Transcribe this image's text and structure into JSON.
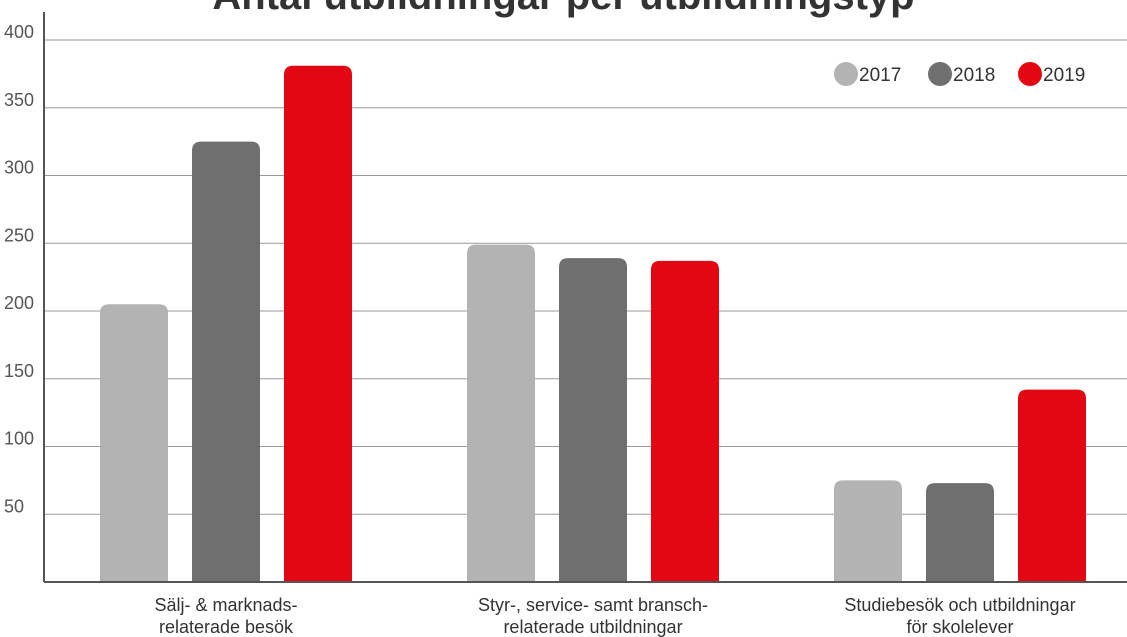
{
  "chart_data": {
    "type": "bar",
    "title": "Antal utbildningar per utbildningstyp",
    "xlabel": "",
    "ylabel": "",
    "ylim": [
      0,
      400
    ],
    "yticks": [
      50,
      100,
      150,
      200,
      250,
      300,
      350,
      400
    ],
    "grid": true,
    "legend_position": "top-right",
    "categories": [
      [
        "Sälj- & marknads-",
        "relaterade besök"
      ],
      [
        "Styr-, service- samt bransch-",
        "relaterade utbildningar"
      ],
      [
        "Studiebesök och utbildningar",
        "för skolelever"
      ]
    ],
    "series": [
      {
        "name": "2017",
        "color": "#b3b3b3",
        "values": [
          205,
          249,
          75
        ]
      },
      {
        "name": "2018",
        "color": "#6f6f6f",
        "values": [
          325,
          239,
          73
        ]
      },
      {
        "name": "2019",
        "color": "#e30613",
        "values": [
          381,
          237,
          142
        ]
      }
    ]
  }
}
